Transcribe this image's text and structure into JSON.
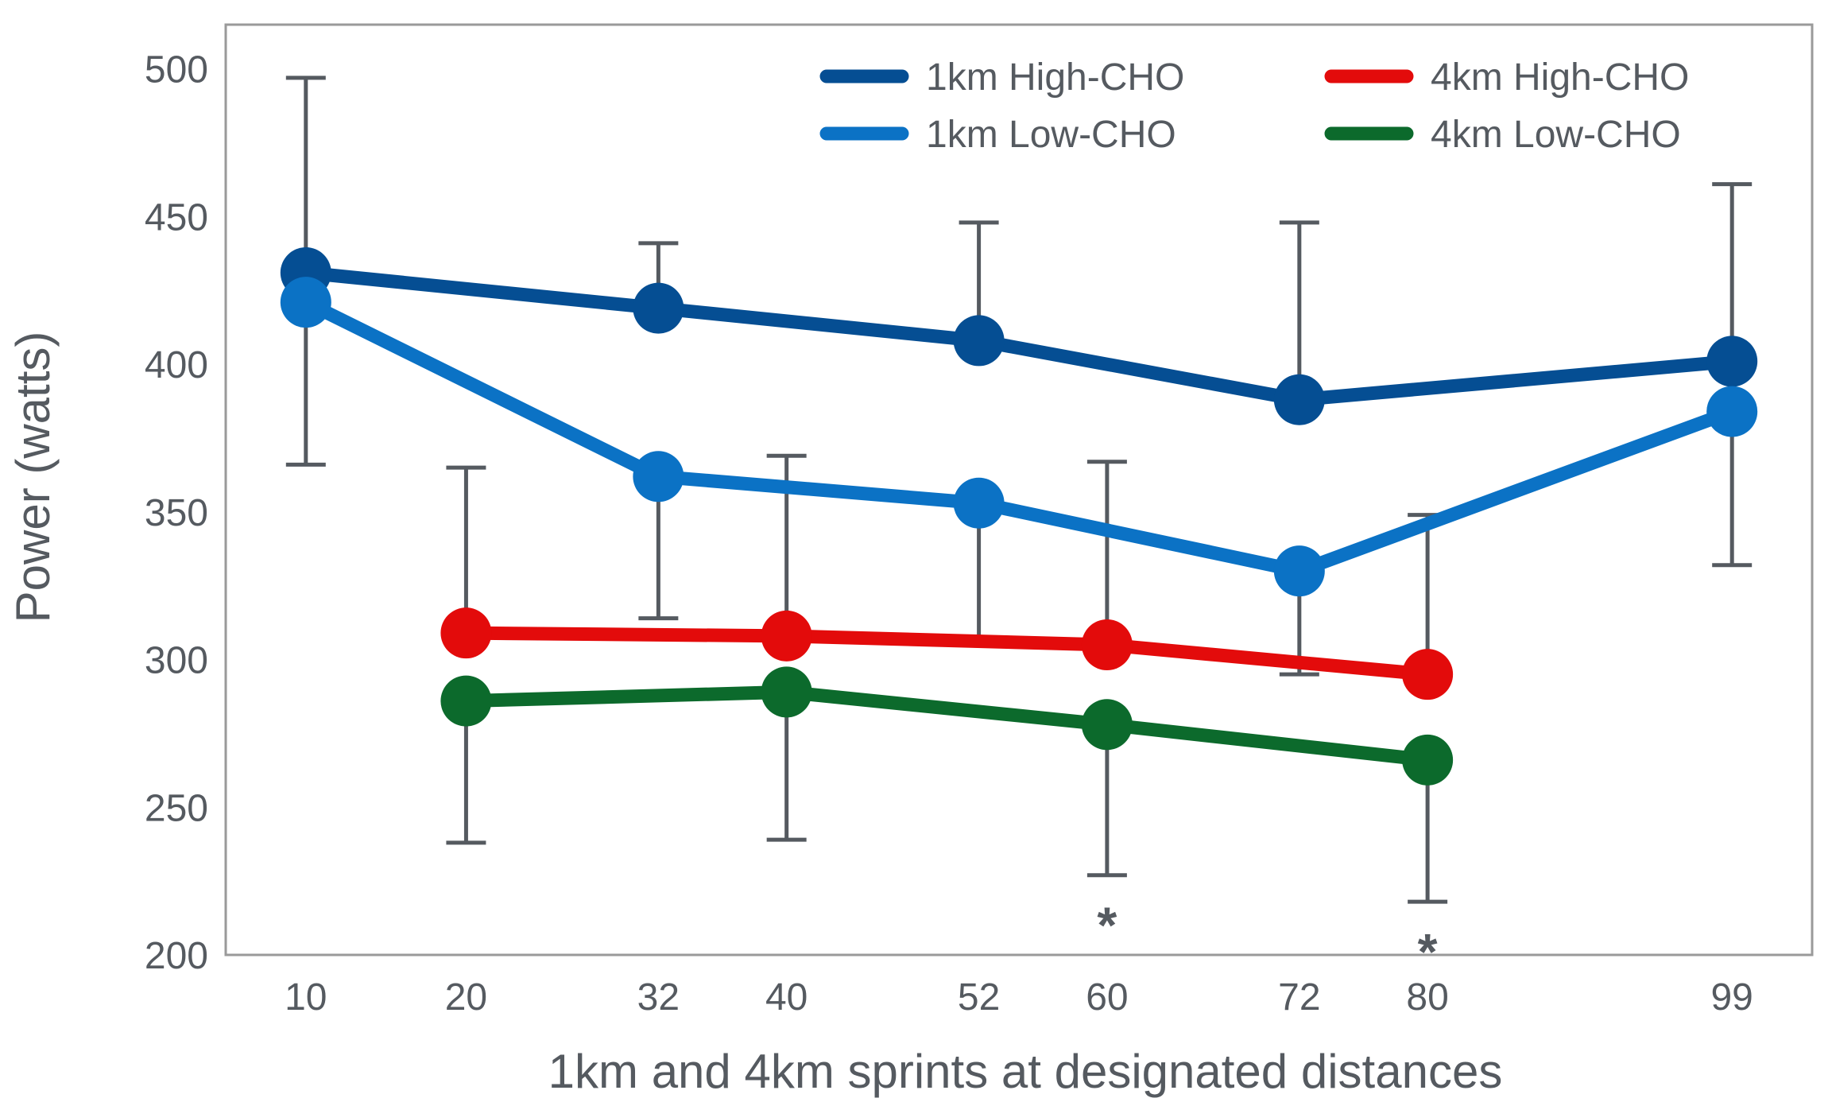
{
  "chart_data": {
    "type": "line",
    "title": "",
    "xlabel": "1km and 4km sprints at designated distances",
    "ylabel": "Power (watts)",
    "xlim": [
      5,
      104
    ],
    "ylim": [
      200,
      515
    ],
    "y_ticks": [
      200,
      250,
      300,
      350,
      400,
      450,
      500
    ],
    "x_ticks": [
      10,
      20,
      32,
      40,
      52,
      60,
      72,
      80,
      99
    ],
    "grid": false,
    "legend_position": "top-right",
    "series": [
      {
        "name": "1km High-CHO",
        "color": "#054e93",
        "x": [
          10,
          32,
          52,
          72,
          99
        ],
        "values": [
          431,
          419,
          408,
          388,
          401
        ],
        "error_upper": [
          497,
          441,
          448,
          448,
          461
        ],
        "error_lower": [
          366,
          null,
          null,
          null,
          null
        ]
      },
      {
        "name": "1km Low-CHO",
        "color": "#0b72c5",
        "x": [
          10,
          32,
          52,
          72,
          99
        ],
        "values": [
          421,
          362,
          353,
          330,
          384
        ],
        "error_upper": [
          null,
          null,
          null,
          null,
          null
        ],
        "error_lower": [
          null,
          314,
          307,
          295,
          332
        ]
      },
      {
        "name": "4km High-CHO",
        "color": "#e30b0b",
        "x": [
          20,
          40,
          60,
          80
        ],
        "values": [
          309,
          308,
          305,
          295
        ],
        "error_upper": [
          365,
          369,
          367,
          349
        ],
        "error_lower": [
          null,
          null,
          null,
          null
        ]
      },
      {
        "name": "4km Low-CHO",
        "color": "#0c6a2c",
        "x": [
          20,
          40,
          60,
          80
        ],
        "values": [
          286,
          289,
          278,
          266
        ],
        "error_upper": [
          null,
          null,
          null,
          null
        ],
        "error_lower": [
          238,
          239,
          227,
          218
        ]
      }
    ],
    "annotations": [
      {
        "x": 60,
        "text": "*"
      },
      {
        "x": 80,
        "text": "*"
      }
    ]
  }
}
